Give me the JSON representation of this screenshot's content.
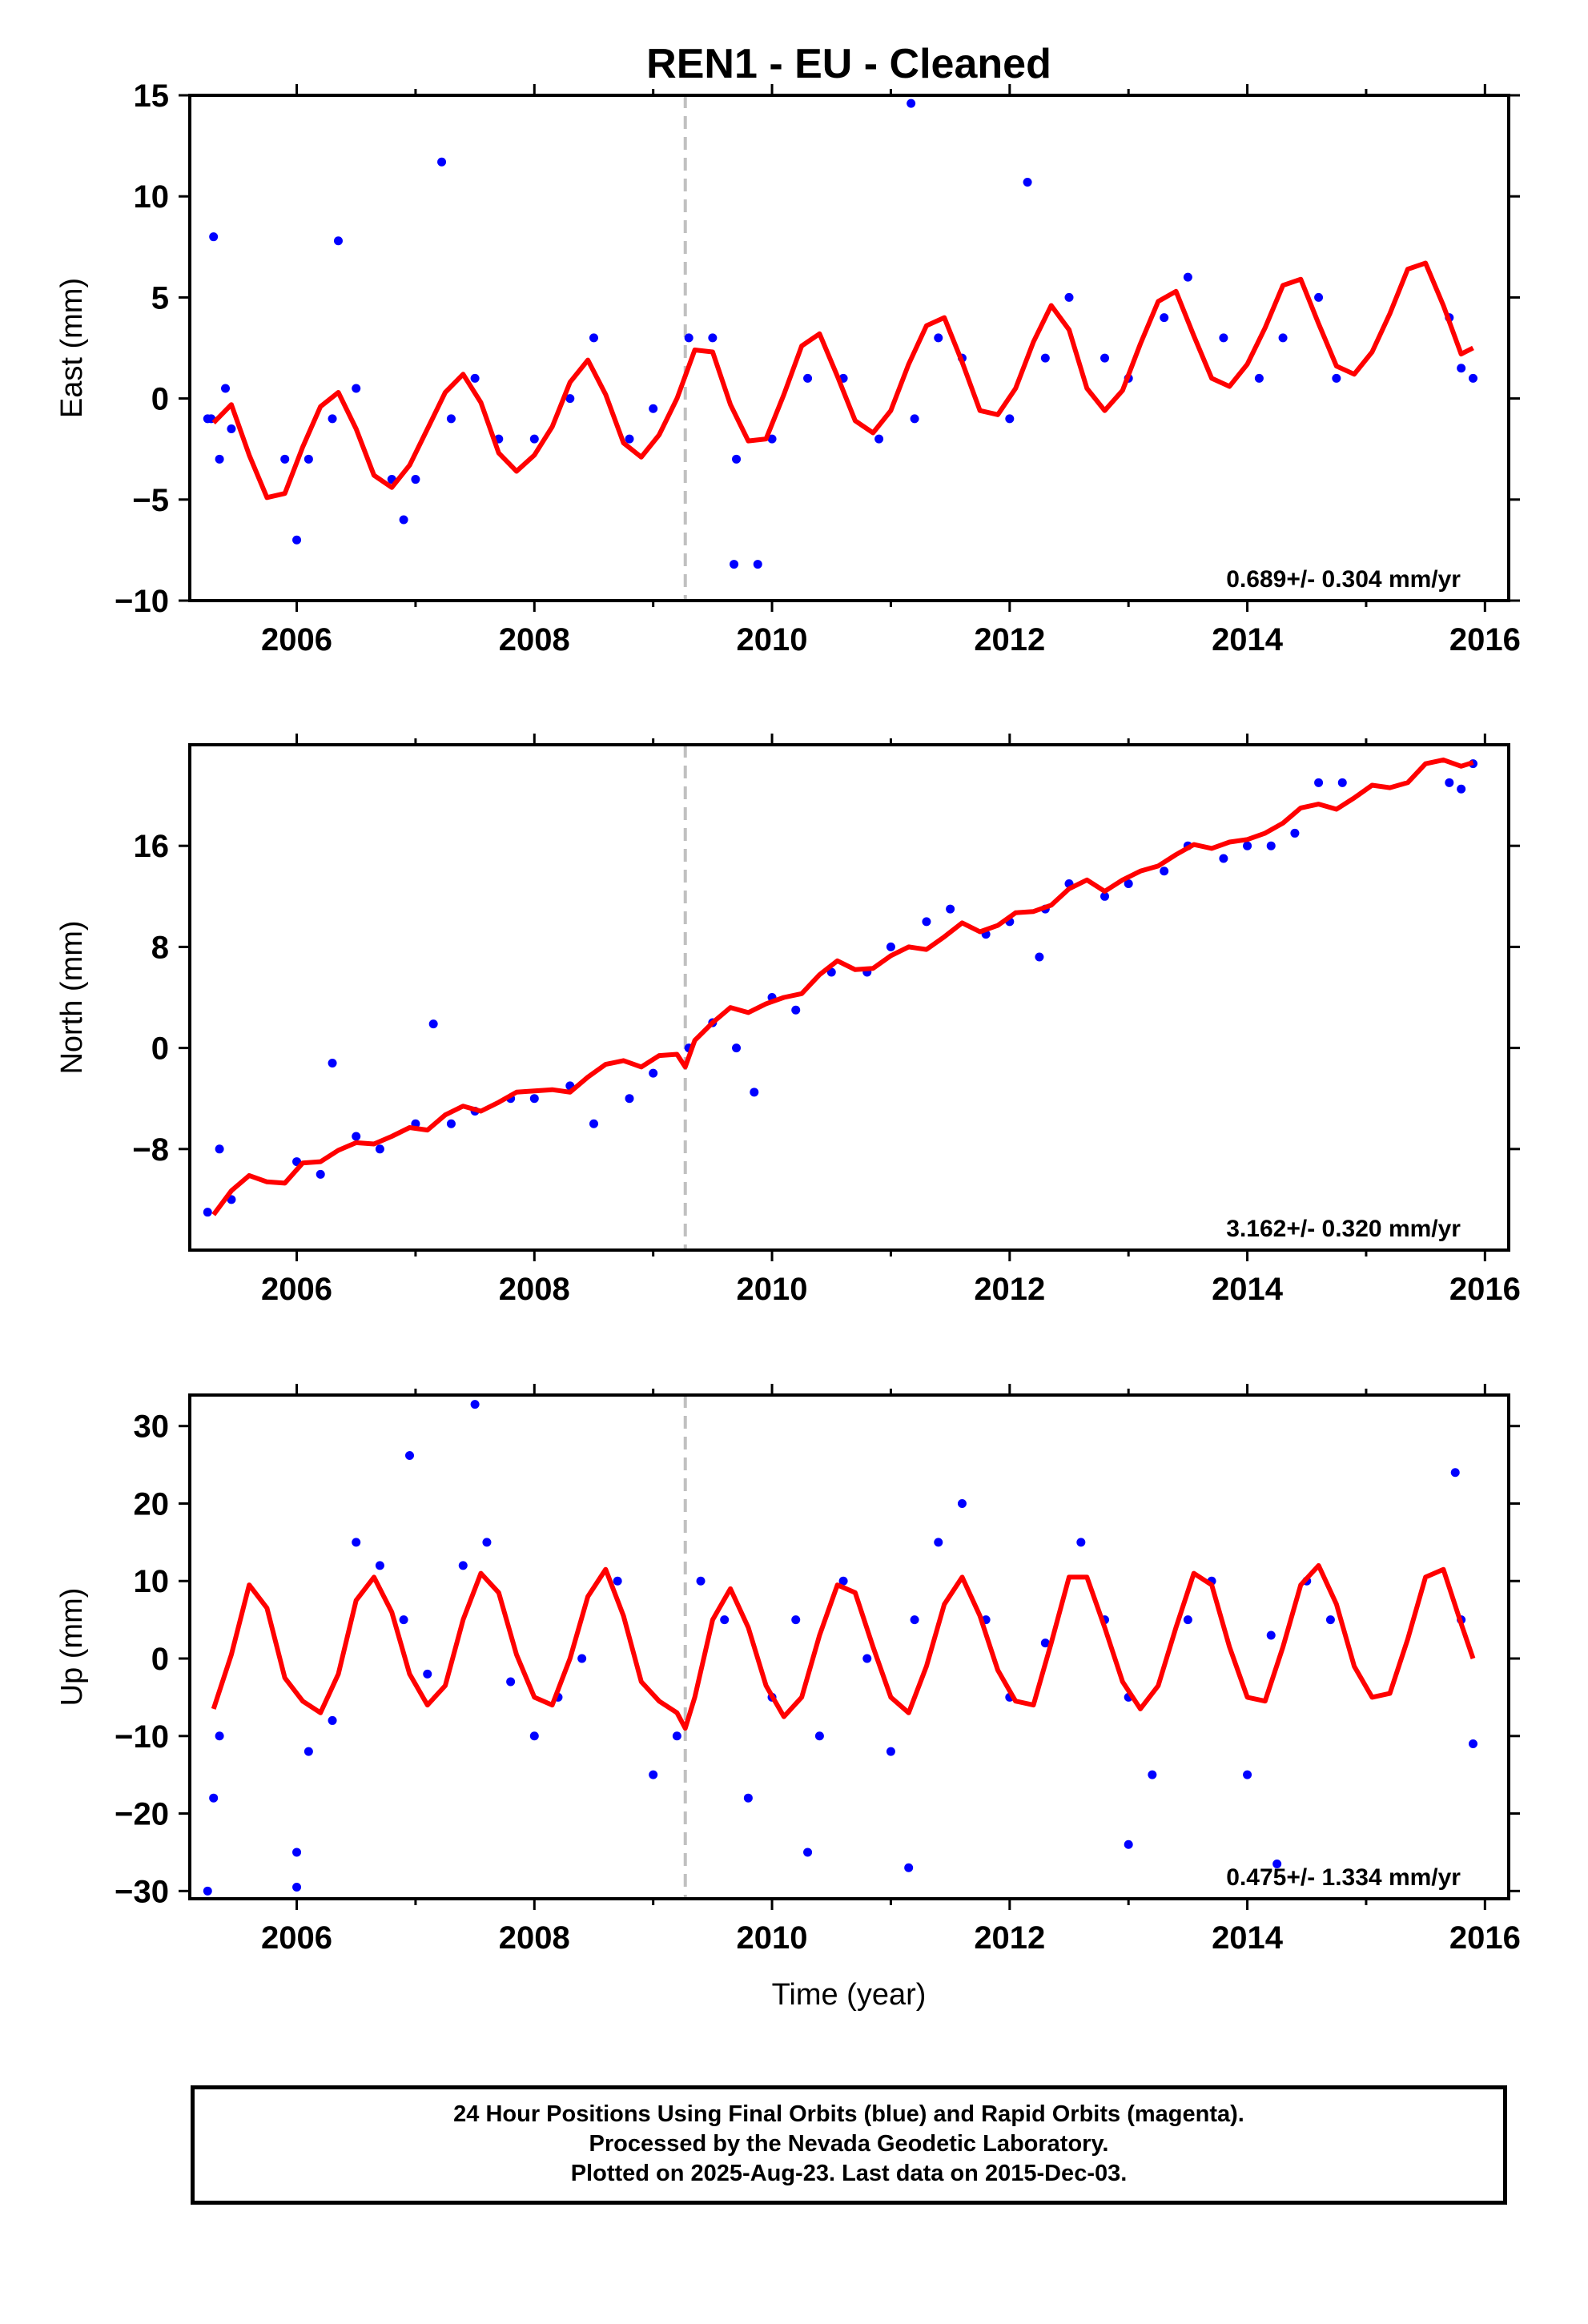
{
  "title": "REN1  - EU - Cleaned",
  "xlabel": "Time (year)",
  "caption": [
    "24 Hour Positions Using Final Orbits (blue) and Rapid Orbits (magenta).",
    "Processed by the Nevada Geodetic Laboratory.",
    "Plotted on 2025-Aug-23. Last data on 2015-Dec-03."
  ],
  "colors": {
    "points": "#0000ff",
    "model": "#ff0000",
    "event_line": "#c0c0c0"
  },
  "chart_data": [
    {
      "type": "scatter",
      "id": "east",
      "ylabel": "East (mm)",
      "xlim": [
        2005.1,
        2016.2
      ],
      "ylim": [
        -10,
        15
      ],
      "xticks": [
        2006,
        2008,
        2010,
        2012,
        2014,
        2016
      ],
      "yticks": [
        -10,
        -5,
        0,
        5,
        10,
        15
      ],
      "yticklabels": [
        "−10",
        "−5",
        "0",
        "5",
        "10",
        "15"
      ],
      "event_line_x": 2009.27,
      "rate_label": "0.689+/- 0.304 mm/yr",
      "series": [
        {
          "name": "points",
          "x": [
            2005.25,
            2005.3,
            2005.35,
            2005.4,
            2005.45,
            2005.9,
            2006.0,
            2006.1,
            2006.3,
            2006.5,
            2006.8,
            2006.9,
            2007.0,
            2007.3,
            2007.5,
            2007.7,
            2008.0,
            2008.3,
            2008.5,
            2008.8,
            2009.0,
            2009.3,
            2009.5,
            2009.7,
            2010.0,
            2010.3,
            2010.6,
            2010.9,
            2011.2,
            2011.4,
            2011.6,
            2012.0,
            2012.3,
            2012.5,
            2012.8,
            2013.0,
            2013.3,
            2013.5,
            2013.8,
            2014.1,
            2014.3,
            2014.6,
            2014.75,
            2015.7,
            2015.8,
            2015.9,
            2005.28,
            2007.22,
            2011.17,
            2006.35,
            2009.68,
            2009.88,
            2012.15
          ],
          "y": [
            -1,
            8,
            -3,
            0.5,
            -1.5,
            -3,
            -7,
            -3,
            -1,
            0.5,
            -4,
            -6,
            -4,
            -1,
            1,
            -2,
            -2,
            0,
            3,
            -2,
            -0.5,
            3,
            3,
            -3,
            -2,
            1,
            1,
            -2,
            -1,
            3,
            2,
            -1,
            2,
            5,
            2,
            1,
            4,
            6,
            3,
            1,
            3,
            5,
            1,
            4,
            1.5,
            1,
            -1,
            11.7,
            14.6,
            7.8,
            -8.2,
            -8.2,
            10.7
          ]
        },
        {
          "name": "model",
          "x": [
            2005.3,
            2005.45,
            2005.6,
            2005.75,
            2005.9,
            2006.05,
            2006.2,
            2006.35,
            2006.5,
            2006.65,
            2006.8,
            2006.95,
            2007.1,
            2007.25,
            2007.4,
            2007.55,
            2007.7,
            2007.85,
            2008.0,
            2008.15,
            2008.3,
            2008.45,
            2008.6,
            2008.75,
            2008.9,
            2009.05,
            2009.2,
            2009.35,
            2009.5,
            2009.65,
            2009.8,
            2009.95,
            2010.1,
            2010.25,
            2010.4,
            2010.55,
            2010.7,
            2010.85,
            2011.0,
            2011.15,
            2011.3,
            2011.45,
            2011.6,
            2011.75,
            2011.9,
            2012.05,
            2012.2,
            2012.35,
            2012.5,
            2012.65,
            2012.8,
            2012.95,
            2013.1,
            2013.25,
            2013.4,
            2013.55,
            2013.7,
            2013.85,
            2014.0,
            2014.15,
            2014.3,
            2014.45,
            2014.6,
            2014.75,
            2014.9,
            2015.05,
            2015.2,
            2015.35,
            2015.5,
            2015.65,
            2015.8,
            2015.9
          ],
          "y": [
            -1.2,
            -0.3,
            -2.8,
            -4.9,
            -4.7,
            -2.4,
            -0.4,
            0.3,
            -1.5,
            -3.8,
            -4.4,
            -3.3,
            -1.5,
            0.3,
            1.2,
            -0.2,
            -2.7,
            -3.6,
            -2.8,
            -1.4,
            0.8,
            1.9,
            0.2,
            -2.2,
            -2.9,
            -1.8,
            0.0,
            2.4,
            2.3,
            -0.3,
            -2.1,
            -2.0,
            0.2,
            2.6,
            3.2,
            1.1,
            -1.1,
            -1.7,
            -0.6,
            1.7,
            3.6,
            4.0,
            1.8,
            -0.6,
            -0.8,
            0.5,
            2.8,
            4.6,
            3.4,
            0.5,
            -0.6,
            0.4,
            2.7,
            4.8,
            5.3,
            3.1,
            1.0,
            0.6,
            1.7,
            3.5,
            5.6,
            5.9,
            3.7,
            1.6,
            1.2,
            2.3,
            4.2,
            6.4,
            6.7,
            4.6,
            2.2,
            2.5
          ]
        }
      ]
    },
    {
      "type": "scatter",
      "id": "north",
      "ylabel": "North (mm)",
      "xlim": [
        2005.1,
        2016.2
      ],
      "ylim": [
        -16,
        24
      ],
      "xticks": [
        2006,
        2008,
        2010,
        2012,
        2014,
        2016
      ],
      "yticks": [
        -8,
        0,
        8,
        16
      ],
      "yticklabels": [
        "−8",
        "0",
        "8",
        "16"
      ],
      "event_line_x": 2009.27,
      "rate_label": "3.162+/- 0.320 mm/yr",
      "series": [
        {
          "name": "points",
          "x": [
            2005.25,
            2005.35,
            2005.45,
            2006.0,
            2006.2,
            2006.5,
            2006.7,
            2007.0,
            2007.3,
            2007.5,
            2007.8,
            2008.0,
            2008.3,
            2008.5,
            2008.8,
            2009.0,
            2009.3,
            2009.5,
            2009.7,
            2010.0,
            2010.2,
            2010.5,
            2010.8,
            2011.0,
            2011.3,
            2011.5,
            2011.8,
            2012.0,
            2012.3,
            2012.5,
            2012.8,
            2013.0,
            2013.3,
            2013.5,
            2013.8,
            2014.0,
            2014.2,
            2014.4,
            2014.6,
            2014.8,
            2015.7,
            2015.8,
            2015.9,
            2006.3,
            2007.15,
            2009.85,
            2012.25
          ],
          "y": [
            -13,
            -8,
            -12,
            -9,
            -10,
            -7,
            -8,
            -6,
            -6,
            -5,
            -4,
            -4,
            -3,
            -6,
            -4,
            -2,
            0,
            2,
            0,
            4,
            3,
            6,
            6,
            8,
            10,
            11,
            9,
            10,
            11,
            13,
            12,
            13,
            14,
            16,
            15,
            16,
            16,
            17,
            21,
            21,
            21,
            20.5,
            22.5,
            -1.2,
            1.9,
            -3.5,
            7.2
          ]
        },
        {
          "name": "model",
          "x": [
            2005.3,
            2005.45,
            2005.6,
            2005.75,
            2005.9,
            2006.05,
            2006.2,
            2006.35,
            2006.5,
            2006.65,
            2006.8,
            2006.95,
            2007.1,
            2007.25,
            2007.4,
            2007.55,
            2007.7,
            2007.85,
            2008.0,
            2008.15,
            2008.3,
            2008.45,
            2008.6,
            2008.75,
            2008.9,
            2009.05,
            2009.2,
            2009.27,
            2009.35,
            2009.5,
            2009.65,
            2009.8,
            2009.95,
            2010.1,
            2010.25,
            2010.4,
            2010.55,
            2010.7,
            2010.85,
            2011.0,
            2011.15,
            2011.3,
            2011.45,
            2011.6,
            2011.75,
            2011.9,
            2012.05,
            2012.2,
            2012.35,
            2012.5,
            2012.65,
            2012.8,
            2012.95,
            2013.1,
            2013.25,
            2013.4,
            2013.55,
            2013.7,
            2013.85,
            2014.0,
            2014.15,
            2014.3,
            2014.45,
            2014.6,
            2014.75,
            2014.9,
            2015.05,
            2015.2,
            2015.35,
            2015.5,
            2015.65,
            2015.8,
            2015.9
          ],
          "y": [
            -13.2,
            -11.3,
            -10.1,
            -10.6,
            -10.7,
            -9.1,
            -9.0,
            -8.1,
            -7.5,
            -7.6,
            -7.0,
            -6.3,
            -6.5,
            -5.3,
            -4.6,
            -5.0,
            -4.3,
            -3.5,
            -3.4,
            -3.3,
            -3.5,
            -2.3,
            -1.3,
            -1.0,
            -1.5,
            -0.6,
            -0.5,
            -1.5,
            0.6,
            2.0,
            3.2,
            2.8,
            3.5,
            4.0,
            4.3,
            5.8,
            6.9,
            6.2,
            6.3,
            7.3,
            8.0,
            7.8,
            8.8,
            9.9,
            9.2,
            9.7,
            10.7,
            10.8,
            11.3,
            12.6,
            13.3,
            12.4,
            13.3,
            14.0,
            14.4,
            15.3,
            16.1,
            15.8,
            16.3,
            16.5,
            17.0,
            17.8,
            19.0,
            19.3,
            18.9,
            19.8,
            20.8,
            20.6,
            21.0,
            22.5,
            22.8,
            22.3,
            22.6
          ]
        }
      ]
    },
    {
      "type": "scatter",
      "id": "up",
      "ylabel": "Up (mm)",
      "xlim": [
        2005.1,
        2016.2
      ],
      "ylim": [
        -31,
        34
      ],
      "xticks": [
        2006,
        2008,
        2010,
        2012,
        2014,
        2016
      ],
      "yticks": [
        -30,
        -20,
        -10,
        0,
        10,
        20,
        30
      ],
      "yticklabels": [
        "−30",
        "−20",
        "−10",
        "0",
        "10",
        "20",
        "30"
      ],
      "event_line_x": 2009.27,
      "rate_label": "0.475+/- 1.334 mm/yr",
      "series": [
        {
          "name": "points",
          "x": [
            2005.25,
            2005.3,
            2005.35,
            2006.0,
            2006.1,
            2006.3,
            2006.5,
            2006.7,
            2006.9,
            2007.1,
            2007.4,
            2007.6,
            2007.8,
            2008.0,
            2008.2,
            2008.4,
            2008.7,
            2009.0,
            2009.2,
            2009.4,
            2009.6,
            2009.8,
            2010.0,
            2010.2,
            2010.4,
            2010.6,
            2010.8,
            2011.0,
            2011.2,
            2011.4,
            2011.6,
            2011.8,
            2012.0,
            2012.3,
            2012.6,
            2012.8,
            2013.0,
            2013.2,
            2013.5,
            2013.7,
            2014.0,
            2014.2,
            2014.5,
            2014.7,
            2015.9,
            2015.75,
            2015.8,
            2007.5,
            2006.95,
            2006.0,
            2010.3,
            2011.15,
            2014.25,
            2013.0
          ],
          "y": [
            -30,
            -18,
            -10,
            -25,
            -12,
            -8,
            15,
            12,
            5,
            -2,
            12,
            15,
            -3,
            -10,
            -5,
            0,
            10,
            -15,
            -10,
            10,
            5,
            -18,
            -5,
            5,
            -10,
            10,
            0,
            -12,
            5,
            15,
            20,
            5,
            -5,
            2,
            15,
            5,
            -5,
            -15,
            5,
            10,
            -15,
            3,
            10,
            5,
            -11,
            24,
            5,
            32.8,
            26.2,
            -29.5,
            -25,
            -27,
            -26.5,
            -24
          ]
        },
        {
          "name": "model",
          "x": [
            2005.3,
            2005.45,
            2005.6,
            2005.75,
            2005.9,
            2006.05,
            2006.2,
            2006.35,
            2006.5,
            2006.65,
            2006.8,
            2006.95,
            2007.1,
            2007.25,
            2007.4,
            2007.55,
            2007.7,
            2007.85,
            2008.0,
            2008.15,
            2008.3,
            2008.45,
            2008.6,
            2008.75,
            2008.9,
            2009.05,
            2009.2,
            2009.27,
            2009.35,
            2009.5,
            2009.65,
            2009.8,
            2009.95,
            2010.1,
            2010.25,
            2010.4,
            2010.55,
            2010.7,
            2010.85,
            2011.0,
            2011.15,
            2011.3,
            2011.45,
            2011.6,
            2011.75,
            2011.9,
            2012.05,
            2012.2,
            2012.35,
            2012.5,
            2012.65,
            2012.8,
            2012.95,
            2013.1,
            2013.25,
            2013.4,
            2013.55,
            2013.7,
            2013.85,
            2014.0,
            2014.15,
            2014.3,
            2014.45,
            2014.6,
            2014.75,
            2014.9,
            2015.05,
            2015.2,
            2015.35,
            2015.5,
            2015.65,
            2015.8,
            2015.9
          ],
          "y": [
            -6.5,
            0.5,
            9.5,
            6.5,
            -2.5,
            -5.5,
            -7.0,
            -2.0,
            7.5,
            10.5,
            6.0,
            -2.0,
            -6.0,
            -3.5,
            5.0,
            11.0,
            8.5,
            0.5,
            -5.0,
            -6.0,
            0.0,
            8.0,
            11.5,
            5.5,
            -3.0,
            -5.5,
            -7.0,
            -9.0,
            -5.0,
            5.0,
            9.0,
            4.0,
            -3.5,
            -7.5,
            -5.0,
            3.0,
            9.5,
            8.5,
            1.5,
            -5.0,
            -7.0,
            -1.0,
            7.0,
            10.5,
            5.5,
            -1.5,
            -5.5,
            -6.0,
            2.0,
            10.5,
            10.5,
            4.0,
            -3.0,
            -6.5,
            -3.5,
            4.0,
            11.0,
            9.5,
            1.5,
            -5.0,
            -5.5,
            1.5,
            9.5,
            12.0,
            7.0,
            -1.0,
            -5.0,
            -4.5,
            2.5,
            10.5,
            11.5,
            4.5,
            0.0
          ]
        }
      ]
    }
  ]
}
